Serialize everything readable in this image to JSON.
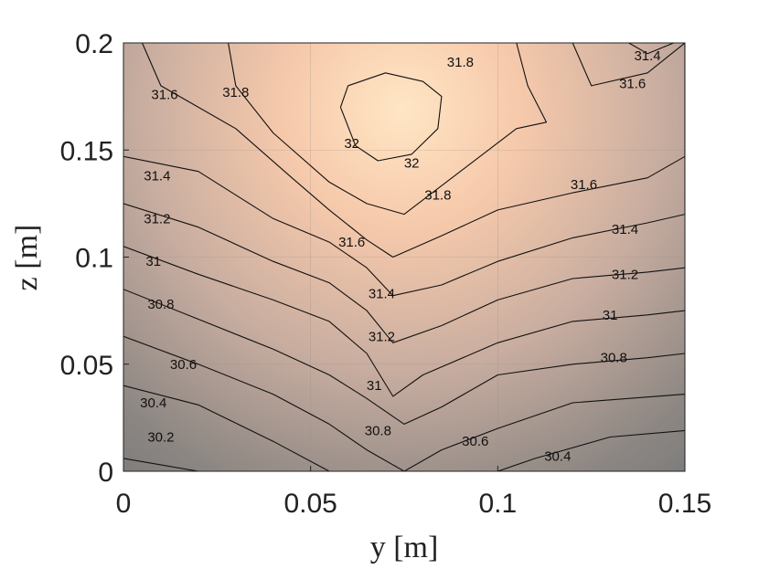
{
  "chart_data": {
    "type": "contour",
    "xlabel": "y [m]",
    "ylabel": "z [m]",
    "xlim": [
      0,
      0.15
    ],
    "ylim": [
      0,
      0.2
    ],
    "x_ticks": [
      "0",
      "0.05",
      "0.1",
      "0.15"
    ],
    "y_ticks": [
      "0",
      "0.05",
      "0.1",
      "0.15",
      "0.2"
    ],
    "grid": true,
    "colormap": {
      "low": "#7a7a7a",
      "high": "#ffe6c4"
    },
    "value_range": [
      30.1,
      32.1
    ],
    "levels": [
      {
        "level": 30.2,
        "label": "30.2",
        "points": [
          [
            0,
            0.006
          ],
          [
            0.02,
            0.0
          ],
          [
            0.03,
            0.0
          ]
        ]
      },
      {
        "level": 30.4,
        "label": "30.4",
        "points": [
          [
            0,
            0.04
          ],
          [
            0.02,
            0.031
          ],
          [
            0.04,
            0.014
          ],
          [
            0.055,
            0.0
          ],
          [
            0.1,
            0.0
          ],
          [
            0.11,
            0.006
          ],
          [
            0.13,
            0.016
          ],
          [
            0.15,
            0.019
          ]
        ]
      },
      {
        "level": 30.6,
        "label": "30.6",
        "points": [
          [
            0,
            0.063
          ],
          [
            0.02,
            0.05
          ],
          [
            0.04,
            0.036
          ],
          [
            0.055,
            0.022
          ],
          [
            0.065,
            0.01
          ],
          [
            0.075,
            0.0
          ],
          [
            0.085,
            0.01
          ],
          [
            0.1,
            0.02
          ],
          [
            0.12,
            0.032
          ],
          [
            0.15,
            0.036
          ]
        ]
      },
      {
        "level": 30.8,
        "label": "30.8",
        "points": [
          [
            0,
            0.085
          ],
          [
            0.02,
            0.071
          ],
          [
            0.04,
            0.057
          ],
          [
            0.055,
            0.045
          ],
          [
            0.065,
            0.034
          ],
          [
            0.075,
            0.022
          ],
          [
            0.085,
            0.03
          ],
          [
            0.1,
            0.045
          ],
          [
            0.12,
            0.05
          ],
          [
            0.14,
            0.053
          ],
          [
            0.15,
            0.055
          ]
        ]
      },
      {
        "level": 31.0,
        "label": "31",
        "points": [
          [
            0,
            0.105
          ],
          [
            0.02,
            0.092
          ],
          [
            0.04,
            0.08
          ],
          [
            0.055,
            0.07
          ],
          [
            0.065,
            0.055
          ],
          [
            0.072,
            0.035
          ],
          [
            0.08,
            0.045
          ],
          [
            0.1,
            0.06
          ],
          [
            0.12,
            0.07
          ],
          [
            0.14,
            0.073
          ],
          [
            0.15,
            0.075
          ]
        ]
      },
      {
        "level": 31.2,
        "label": "31.2",
        "points": [
          [
            0,
            0.125
          ],
          [
            0.02,
            0.114
          ],
          [
            0.04,
            0.098
          ],
          [
            0.055,
            0.088
          ],
          [
            0.065,
            0.075
          ],
          [
            0.072,
            0.06
          ],
          [
            0.085,
            0.068
          ],
          [
            0.1,
            0.08
          ],
          [
            0.12,
            0.09
          ],
          [
            0.14,
            0.093
          ],
          [
            0.15,
            0.095
          ]
        ]
      },
      {
        "level": 31.4,
        "label": "31.4",
        "points": [
          [
            0,
            0.147
          ],
          [
            0.02,
            0.14
          ],
          [
            0.04,
            0.118
          ],
          [
            0.055,
            0.107
          ],
          [
            0.065,
            0.095
          ],
          [
            0.072,
            0.082
          ],
          [
            0.085,
            0.087
          ],
          [
            0.1,
            0.098
          ],
          [
            0.12,
            0.109
          ],
          [
            0.14,
            0.116
          ],
          [
            0.15,
            0.12
          ],
          [
            0.15,
            0.2
          ],
          [
            0.147,
            0.2
          ],
          [
            0.14,
            0.195
          ],
          [
            0.135,
            0.2
          ]
        ]
      },
      {
        "level": 31.6,
        "label": "31.6",
        "points": [
          [
            0.005,
            0.2
          ],
          [
            0.01,
            0.18
          ],
          [
            0.03,
            0.16
          ],
          [
            0.045,
            0.137
          ],
          [
            0.055,
            0.122
          ],
          [
            0.065,
            0.108
          ],
          [
            0.072,
            0.1
          ],
          [
            0.085,
            0.11
          ],
          [
            0.1,
            0.122
          ],
          [
            0.12,
            0.13
          ],
          [
            0.14,
            0.137
          ],
          [
            0.15,
            0.147
          ],
          [
            0.15,
            0.2
          ],
          [
            0.14,
            0.186
          ],
          [
            0.125,
            0.18
          ],
          [
            0.12,
            0.2
          ]
        ]
      },
      {
        "level": 31.8,
        "label": "31.8",
        "points": [
          [
            0.028,
            0.2
          ],
          [
            0.03,
            0.18
          ],
          [
            0.04,
            0.158
          ],
          [
            0.055,
            0.135
          ],
          [
            0.065,
            0.125
          ],
          [
            0.075,
            0.12
          ],
          [
            0.09,
            0.14
          ],
          [
            0.105,
            0.16
          ],
          [
            0.113,
            0.163
          ],
          [
            0.108,
            0.18
          ],
          [
            0.105,
            0.2
          ]
        ]
      },
      {
        "level": 32.0,
        "label": "32",
        "points": [
          [
            0.058,
            0.17
          ],
          [
            0.06,
            0.18
          ],
          [
            0.07,
            0.186
          ],
          [
            0.08,
            0.182
          ],
          [
            0.085,
            0.175
          ],
          [
            0.084,
            0.16
          ],
          [
            0.077,
            0.148
          ],
          [
            0.068,
            0.145
          ],
          [
            0.062,
            0.152
          ],
          [
            0.058,
            0.17
          ]
        ]
      }
    ],
    "label_positions": [
      {
        "label": "30.2",
        "y": 0.01,
        "z": 0.016
      },
      {
        "label": "30.4",
        "y": 0.008,
        "z": 0.032
      },
      {
        "label": "30.6",
        "y": 0.016,
        "z": 0.05
      },
      {
        "label": "30.8",
        "y": 0.01,
        "z": 0.078
      },
      {
        "label": "31",
        "y": 0.008,
        "z": 0.098
      },
      {
        "label": "31.2",
        "y": 0.009,
        "z": 0.118
      },
      {
        "label": "31.4",
        "y": 0.009,
        "z": 0.138
      },
      {
        "label": "31.6",
        "y": 0.011,
        "z": 0.176
      },
      {
        "label": "31.8",
        "y": 0.03,
        "z": 0.177
      },
      {
        "label": "32",
        "y": 0.061,
        "z": 0.153
      },
      {
        "label": "32",
        "y": 0.077,
        "z": 0.144
      },
      {
        "label": "31.8",
        "y": 0.084,
        "z": 0.129
      },
      {
        "label": "31.8",
        "y": 0.09,
        "z": 0.191
      },
      {
        "label": "31.6",
        "y": 0.061,
        "z": 0.107
      },
      {
        "label": "31.4",
        "y": 0.069,
        "z": 0.083
      },
      {
        "label": "31.2",
        "y": 0.069,
        "z": 0.063
      },
      {
        "label": "31",
        "y": 0.067,
        "z": 0.04
      },
      {
        "label": "30.8",
        "y": 0.068,
        "z": 0.019
      },
      {
        "label": "30.6",
        "y": 0.094,
        "z": 0.014
      },
      {
        "label": "30.4",
        "y": 0.116,
        "z": 0.007
      },
      {
        "label": "31.6",
        "y": 0.123,
        "z": 0.134
      },
      {
        "label": "31.4",
        "y": 0.134,
        "z": 0.113
      },
      {
        "label": "31.2",
        "y": 0.134,
        "z": 0.092
      },
      {
        "label": "31",
        "y": 0.13,
        "z": 0.073
      },
      {
        "label": "30.8",
        "y": 0.131,
        "z": 0.053
      },
      {
        "label": "31.4",
        "y": 0.14,
        "z": 0.194
      },
      {
        "label": "31.6",
        "y": 0.136,
        "z": 0.181
      }
    ]
  }
}
